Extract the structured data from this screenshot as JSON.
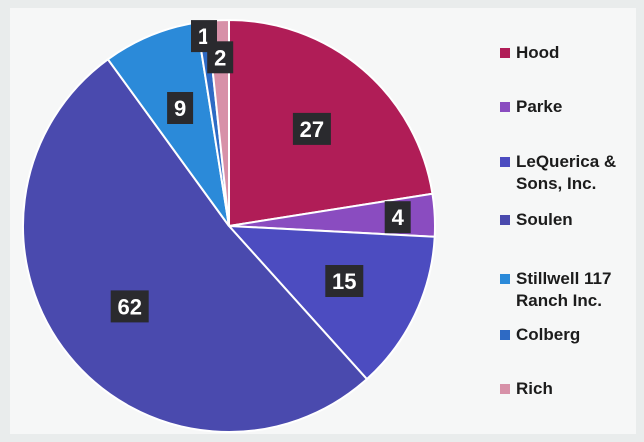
{
  "chart_data": {
    "type": "pie",
    "start_angle_deg": 0,
    "direction": "clockwise",
    "slices": [
      {
        "label": "Hood",
        "value": 27,
        "color": "#b01d57"
      },
      {
        "label": "Parke",
        "value": 4,
        "color": "#8a4cc0"
      },
      {
        "label": "LeQuerica &\nSons, Inc.",
        "value": 15,
        "color": "#4c4cc0"
      },
      {
        "label": "Soulen",
        "value": 62,
        "color": "#4a4aae"
      },
      {
        "label": "Stillwell 117\nRanch Inc.",
        "value": 9,
        "color": "#2b8ad9"
      },
      {
        "label": "Colberg",
        "value": 1,
        "color": "#2e6ac4"
      },
      {
        "label": "Rich",
        "value": 2,
        "color": "#d791a8"
      }
    ],
    "legend_position": "right"
  }
}
